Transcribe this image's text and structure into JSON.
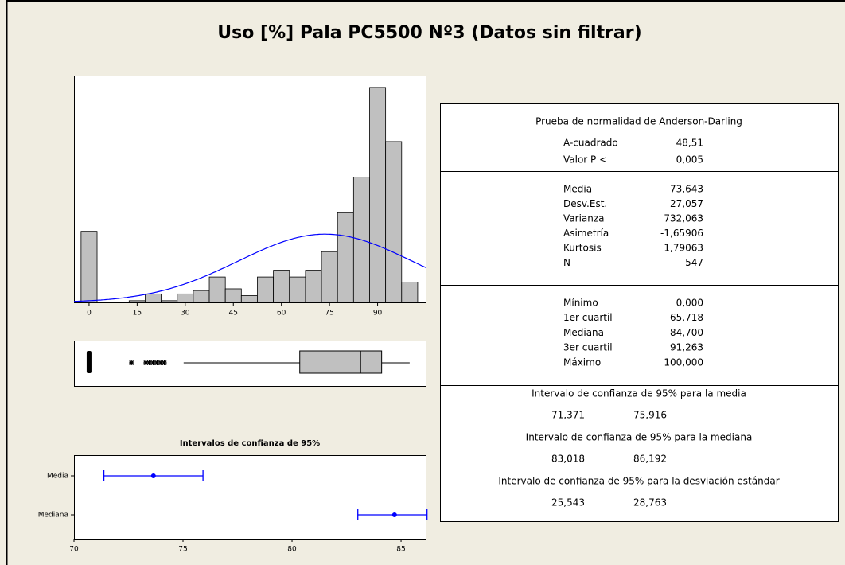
{
  "title": "Uso [%] Pala PC5500 Nº3 (Datos sin filtrar)",
  "chart_data": [
    {
      "type": "histogram",
      "bins": [
        -2.5,
        2.5,
        7.5,
        12.5,
        17.5,
        22.5,
        27.5,
        32.5,
        37.5,
        42.5,
        47.5,
        52.5,
        57.5,
        62.5,
        67.5,
        72.5,
        77.5,
        82.5,
        87.5,
        92.5,
        97.5,
        102.5
      ],
      "values": [
        42,
        0,
        0,
        1,
        5,
        1,
        5,
        7,
        15,
        8,
        4,
        15,
        19,
        15,
        19,
        30,
        53,
        74,
        127,
        95,
        12
      ],
      "xlim": [
        -4.7,
        105
      ],
      "ylim": [
        0,
        134
      ],
      "xticks": [
        0,
        15,
        30,
        45,
        60,
        75,
        90
      ],
      "color": "#c0c0c0",
      "curve_color": "#0000ff"
    },
    {
      "type": "boxplot",
      "whisker_low": 29.5,
      "outliers": [
        0,
        13.2,
        17.7,
        18.8,
        20,
        21.2,
        22.4,
        23.5
      ],
      "color": "#c0c0c0"
    },
    {
      "type": "interval",
      "title": "Intervalos de confianza de 95%",
      "categories": [
        "Media",
        "Mediana"
      ],
      "xlim": [
        70,
        86.13
      ],
      "xticks": [
        70,
        75,
        80,
        85
      ],
      "color": "#0000ff"
    }
  ],
  "stats": {
    "normality": {
      "title": "Prueba de normalidad de Anderson-Darling",
      "rows": [
        [
          "A-cuadrado",
          "48,51"
        ],
        [
          "Valor P <",
          "0,005"
        ]
      ]
    },
    "moments": {
      "rows": [
        [
          "Media",
          "73,643"
        ],
        [
          "Desv.Est.",
          "27,057"
        ],
        [
          "Varianza",
          "732,063"
        ],
        [
          "Asimetría",
          "-1,65906"
        ],
        [
          "Kurtosis",
          "1,79063"
        ],
        [
          "N",
          "547"
        ]
      ]
    },
    "quantiles": {
      "rows": [
        [
          "Mínimo",
          "0,000"
        ],
        [
          "1er cuartil",
          "65,718"
        ],
        [
          "Mediana",
          "84,700"
        ],
        [
          "3er cuartil",
          "91,263"
        ],
        [
          "Máximo",
          "100,000"
        ]
      ]
    },
    "intervals": [
      {
        "title": "Intervalo de confianza de 95% para la media",
        "low": "71,371",
        "high": "75,916"
      },
      {
        "title": "Intervalo de confianza de 95% para la mediana",
        "low": "83,018",
        "high": "86,192"
      },
      {
        "title": "Intervalo de confianza de 95% para la desviación estándar",
        "low": "25,543",
        "high": "28,763"
      }
    ]
  }
}
